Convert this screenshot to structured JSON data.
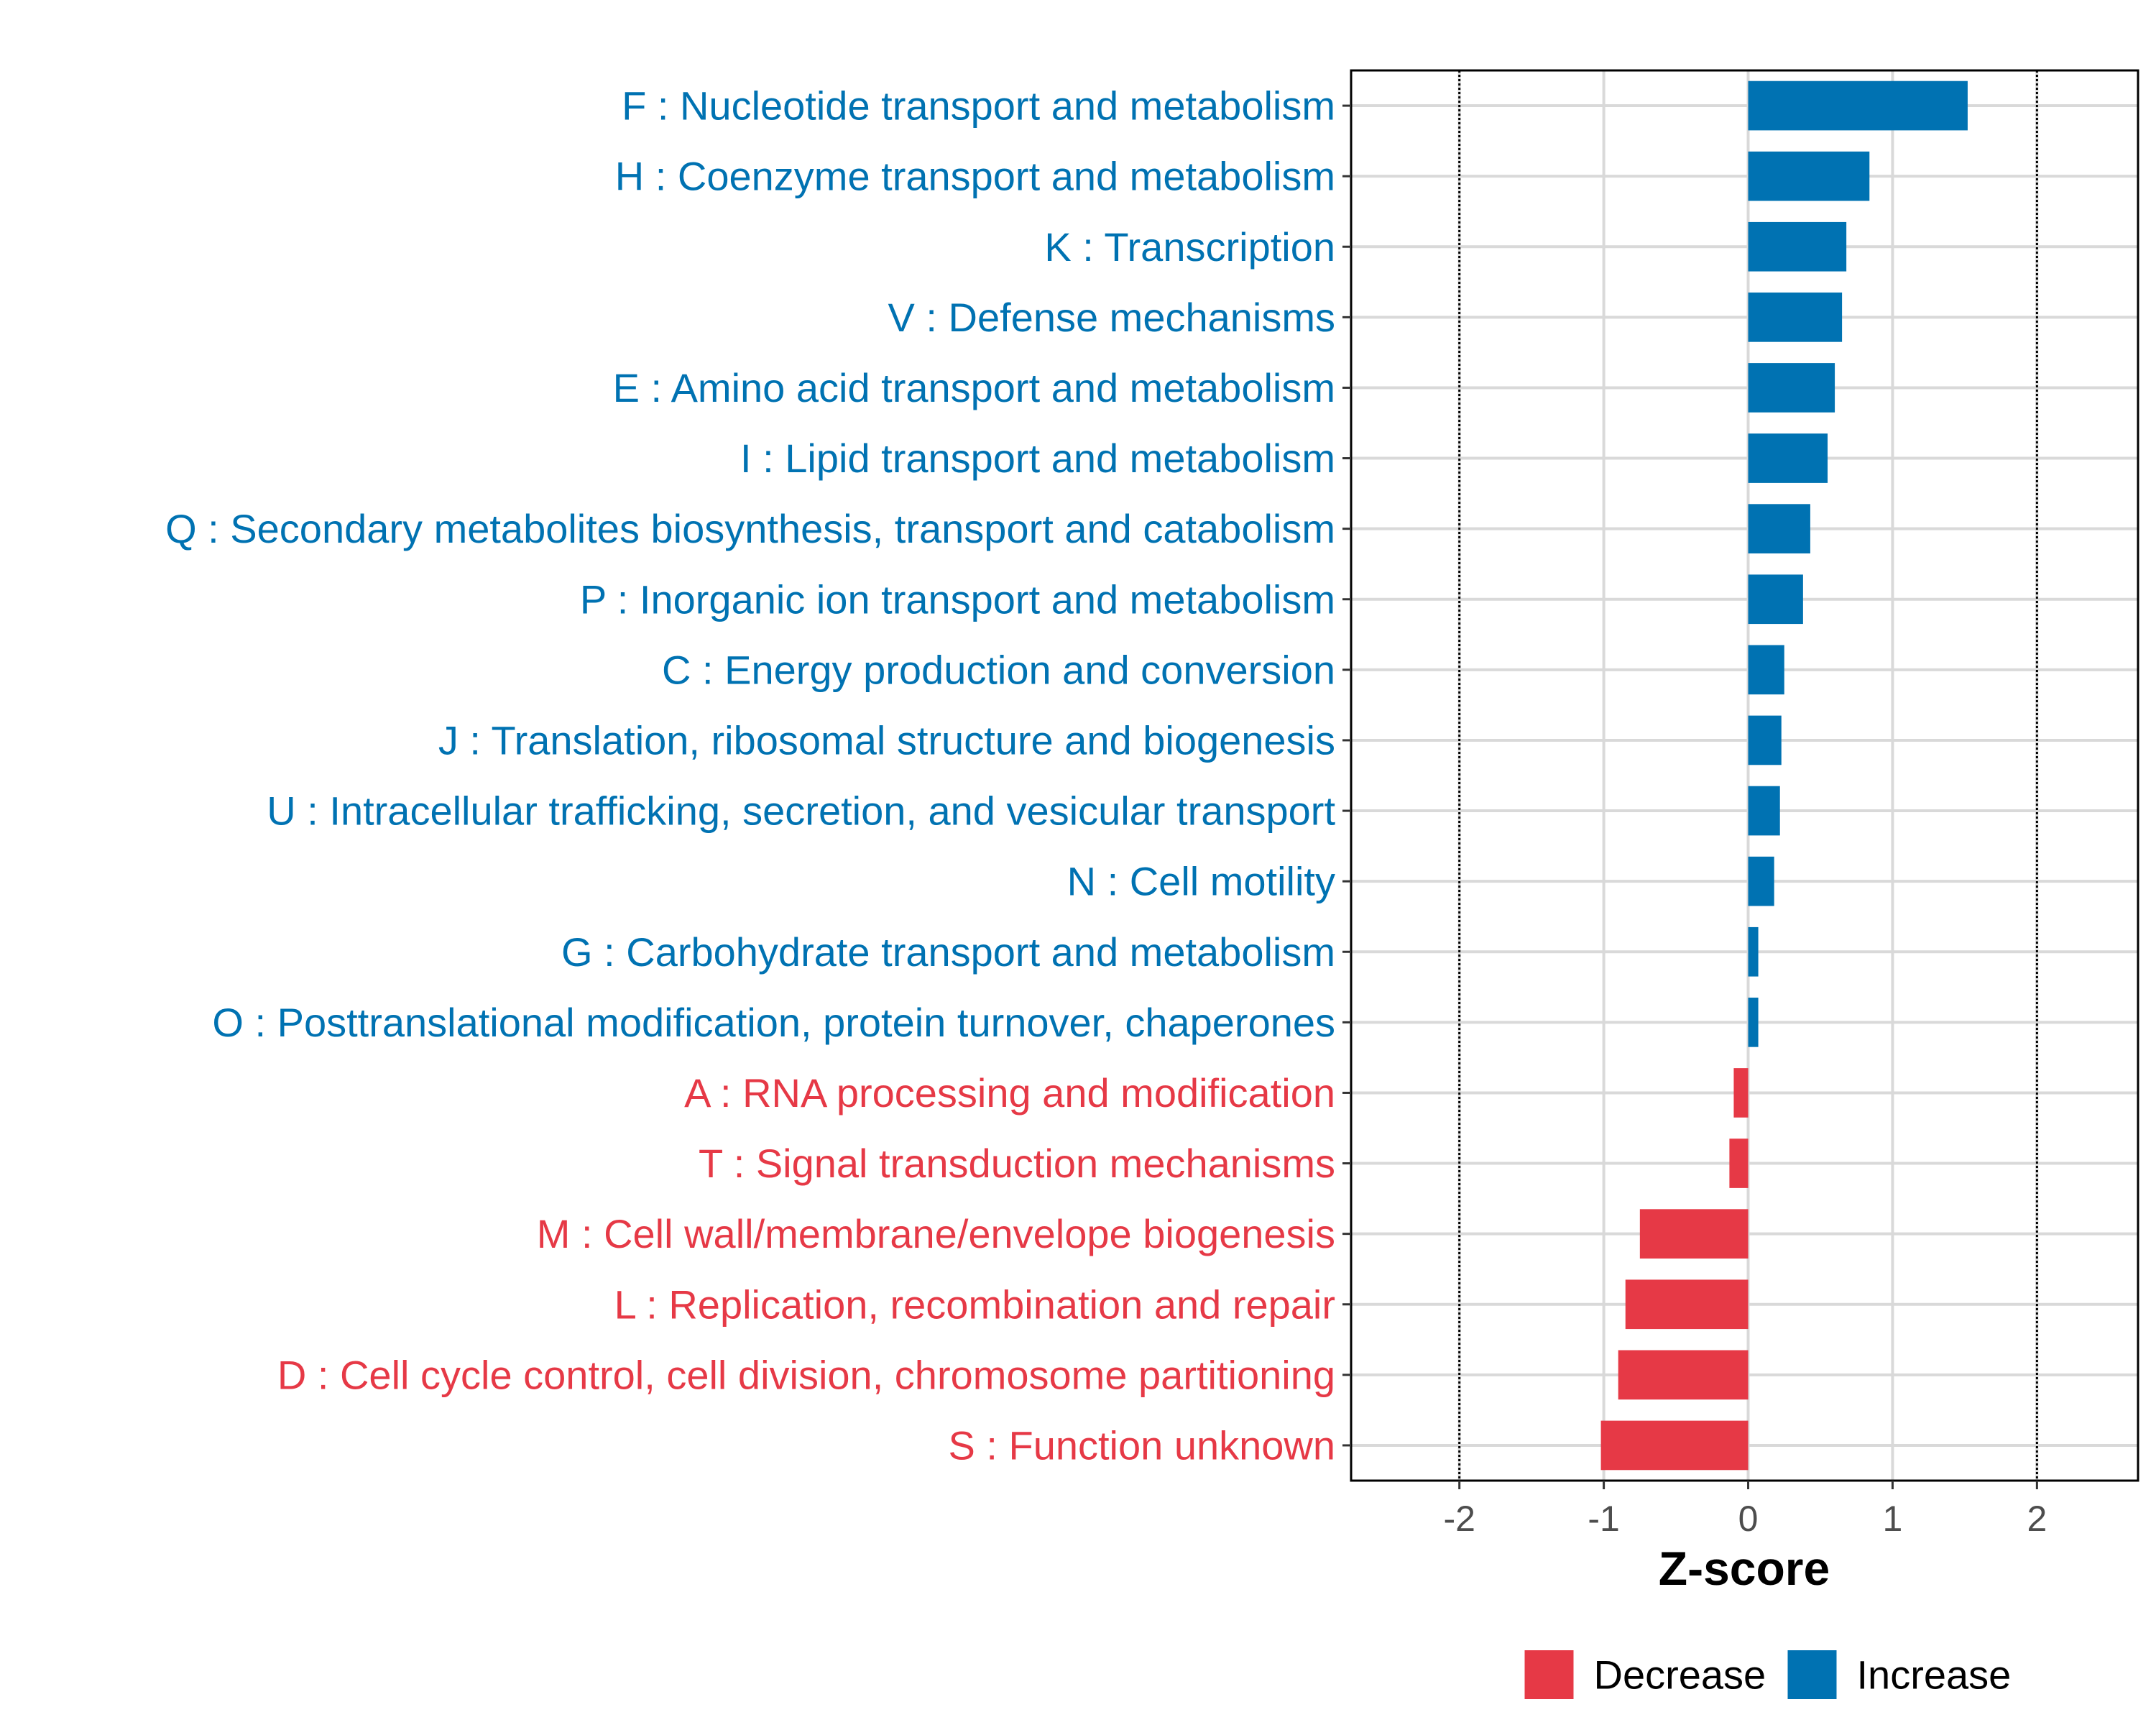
{
  "chart_data": {
    "type": "bar",
    "orientation": "horizontal",
    "categories": [
      "F : Nucleotide transport and metabolism",
      "H : Coenzyme transport and metabolism",
      "K : Transcription",
      "V : Defense mechanisms",
      "E : Amino acid transport and metabolism",
      "I : Lipid transport and metabolism",
      "Q : Secondary metabolites biosynthesis, transport and catabolism",
      "P : Inorganic ion transport and metabolism",
      "C : Energy production and conversion",
      "J : Translation, ribosomal structure and biogenesis",
      "U : Intracellular trafficking, secretion, and vesicular transport",
      "N : Cell motility",
      "G : Carbohydrate transport and metabolism",
      "O : Posttranslational modification, protein turnover, chaperones",
      "A : RNA processing and modification",
      "T : Signal transduction mechanisms",
      "M : Cell wall/membrane/envelope biogenesis",
      "L : Replication, recombination and repair",
      "D : Cell cycle control, cell division, chromosome partitioning",
      "S : Function unknown"
    ],
    "values": [
      1.52,
      0.84,
      0.68,
      0.65,
      0.6,
      0.55,
      0.43,
      0.38,
      0.25,
      0.23,
      0.22,
      0.18,
      0.07,
      0.07,
      -0.1,
      -0.13,
      -0.75,
      -0.85,
      -0.9,
      -1.02
    ],
    "xlabel": "Z-score",
    "xlim": [
      -2.75,
      2.7
    ],
    "xticks": [
      -2,
      -1,
      0,
      1,
      2
    ],
    "xtick_labels": [
      "-2",
      "-1",
      "0",
      "1",
      "2"
    ],
    "reference_lines": [
      -2,
      2
    ],
    "grid": true,
    "colors": {
      "Increase": "#0072b2",
      "Decrease": "#e63946"
    },
    "legend": {
      "position": "bottom",
      "entries": [
        {
          "label": "Decrease",
          "color": "#e63946"
        },
        {
          "label": "Increase",
          "color": "#0072b2"
        }
      ]
    }
  }
}
